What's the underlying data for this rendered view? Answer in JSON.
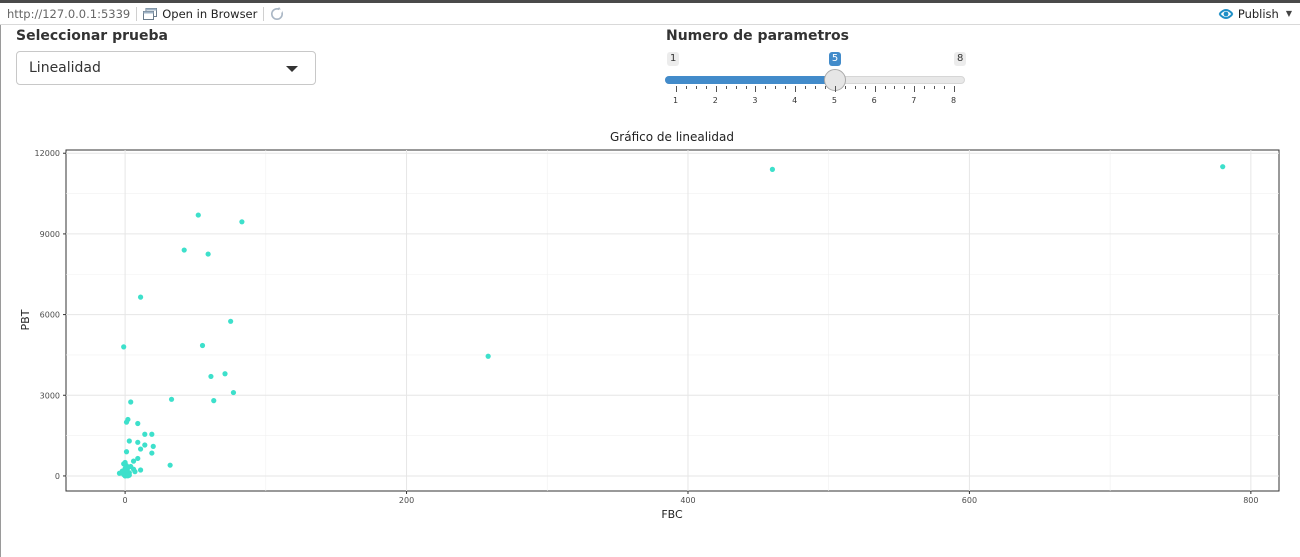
{
  "toolbar": {
    "url": "http://127.0.0.1:5339",
    "open_in_browser": "Open in Browser",
    "publish": "Publish"
  },
  "controls": {
    "test_select": {
      "label": "Seleccionar prueba",
      "value": "Linealidad"
    },
    "param_slider": {
      "label": "Numero de parametros",
      "min": 1,
      "max": 8,
      "value": 5,
      "ticks": [
        "1",
        "2",
        "3",
        "4",
        "5",
        "6",
        "7",
        "8"
      ]
    }
  },
  "chart_data": {
    "type": "scatter",
    "title": "Gráfico de linealidad",
    "xlabel": "FBC",
    "ylabel": "PBT",
    "xlim": [
      -42,
      820
    ],
    "ylim": [
      -560,
      12120
    ],
    "xticks": [
      0,
      200,
      400,
      600,
      800
    ],
    "yticks": [
      0,
      3000,
      6000,
      9000,
      12000
    ],
    "grid": true,
    "point_color": "#3de0cb",
    "points": [
      [
        780,
        11500
      ],
      [
        460,
        11400
      ],
      [
        258,
        4450
      ],
      [
        52,
        9700
      ],
      [
        83,
        9450
      ],
      [
        42,
        8400
      ],
      [
        59,
        8250
      ],
      [
        11,
        6650
      ],
      [
        75,
        5750
      ],
      [
        -1,
        4800
      ],
      [
        55,
        4850
      ],
      [
        71,
        3800
      ],
      [
        61,
        3700
      ],
      [
        77,
        3100
      ],
      [
        33,
        2850
      ],
      [
        63,
        2800
      ],
      [
        4,
        2750
      ],
      [
        2,
        2100
      ],
      [
        1,
        2000
      ],
      [
        9,
        1950
      ],
      [
        14,
        1550
      ],
      [
        19,
        1550
      ],
      [
        3,
        1300
      ],
      [
        9,
        1250
      ],
      [
        14,
        1150
      ],
      [
        20,
        1100
      ],
      [
        11,
        1000
      ],
      [
        1,
        900
      ],
      [
        19,
        850
      ],
      [
        9,
        650
      ],
      [
        6,
        550
      ],
      [
        0,
        500
      ],
      [
        -1,
        450
      ],
      [
        32,
        400
      ],
      [
        1,
        380
      ],
      [
        4,
        350
      ],
      [
        2,
        300
      ],
      [
        0,
        280
      ],
      [
        6,
        250
      ],
      [
        11,
        220
      ],
      [
        1,
        200
      ],
      [
        -2,
        180
      ],
      [
        7,
        160
      ],
      [
        2,
        140
      ],
      [
        3,
        120
      ],
      [
        -4,
        100
      ],
      [
        1,
        90
      ],
      [
        0,
        70
      ],
      [
        2,
        60
      ],
      [
        -1,
        50
      ],
      [
        1,
        40
      ],
      [
        3,
        30
      ],
      [
        0,
        20
      ],
      [
        1,
        10
      ],
      [
        0,
        0
      ],
      [
        2,
        5
      ]
    ]
  }
}
